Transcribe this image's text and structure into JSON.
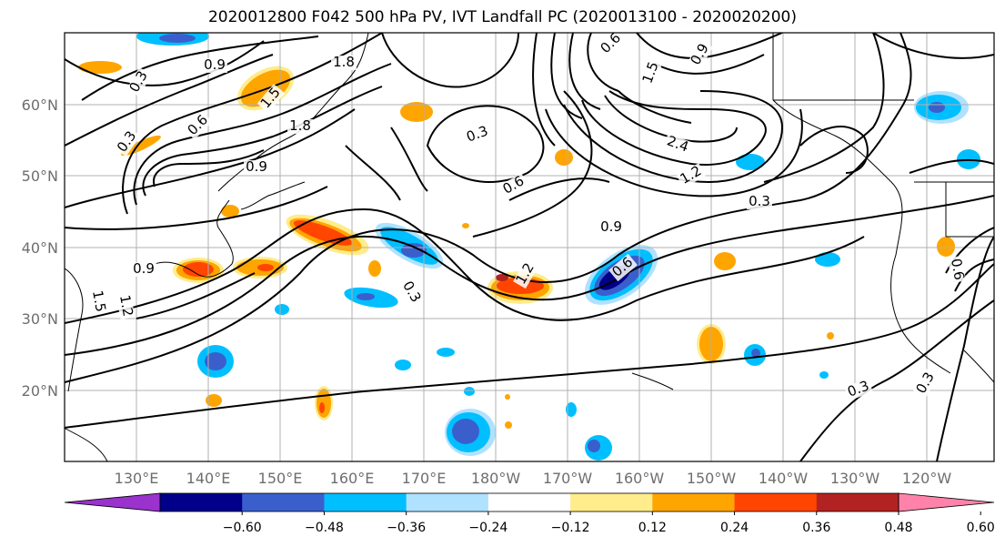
{
  "title": "2020012800 F042 500 hPa PV, IVT Landfall PC (2020013100 - 2020020200)",
  "lat_labels": [
    "60°N",
    "50°N",
    "40°N",
    "30°N",
    "20°N"
  ],
  "lon_labels": [
    "130°E",
    "140°E",
    "150°E",
    "160°E",
    "170°E",
    "180°W",
    "170°W",
    "160°W",
    "150°W",
    "140°W",
    "130°W",
    "120°W"
  ],
  "colorbar": {
    "colors": [
      "#9a32cd",
      "#00008b",
      "#3a5fcd",
      "#00bfff",
      "#b0e2ff",
      "#ffffff",
      "#ffec8b",
      "#ffa500",
      "#ff4500",
      "#b22222",
      "#ff82ab"
    ],
    "tick_labels": [
      "−0.60",
      "−0.48",
      "−0.36",
      "−0.24",
      "−0.12",
      "0.12",
      "0.24",
      "0.36",
      "0.48",
      "0.60"
    ]
  },
  "contour_labels": [
    "0.9",
    "1.8",
    "0.3",
    "1.5",
    "0.3",
    "0.6",
    "1.8",
    "0.9",
    "0.3",
    "0.6",
    "0.9",
    "1.2",
    "2.4",
    "0.9",
    "1.5",
    "0.3",
    "0.6",
    "0.3",
    "0.3",
    "0.9",
    "1.5",
    "1.2",
    "0.3",
    "1.2",
    "0.6",
    "0.6"
  ],
  "colors": {
    "border": "#000000",
    "grid": "#b0b0b0",
    "coast": "#000000"
  }
}
